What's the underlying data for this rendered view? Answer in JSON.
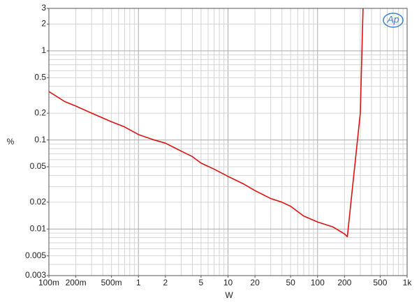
{
  "chart_data": {
    "type": "line",
    "x_label": "W",
    "y_label": "%",
    "logo": "Ap",
    "x_scale": "log",
    "y_scale": "log",
    "grid": true,
    "xlim": [
      0.1,
      1000
    ],
    "ylim": [
      0.003,
      3
    ],
    "xticks": [
      {
        "value": 0.1,
        "label": "100m"
      },
      {
        "value": 0.2,
        "label": "200m"
      },
      {
        "value": 0.5,
        "label": "500m"
      },
      1,
      2,
      5,
      10,
      20,
      50,
      100,
      200,
      500,
      {
        "value": 1000,
        "label": "1k"
      }
    ],
    "yticks": [
      0.003,
      0.005,
      0.01,
      0.02,
      0.05,
      0.1,
      0.2,
      0.5,
      1,
      2,
      3
    ],
    "x": [
      0.1,
      0.15,
      0.2,
      0.3,
      0.5,
      0.7,
      1,
      1.5,
      2,
      3,
      4,
      5,
      7,
      10,
      15,
      20,
      30,
      40,
      50,
      70,
      100,
      150,
      200,
      215,
      300,
      322
    ],
    "series": [
      {
        "color": "#dd1111",
        "values": [
          0.35,
          0.27,
          0.24,
          0.2,
          0.16,
          0.14,
          0.115,
          0.1,
          0.092,
          0.075,
          0.065,
          0.055,
          0.047,
          0.039,
          0.032,
          0.027,
          0.022,
          0.02,
          0.018,
          0.014,
          0.012,
          0.0105,
          0.0088,
          0.0082,
          0.2,
          3
        ]
      }
    ]
  }
}
